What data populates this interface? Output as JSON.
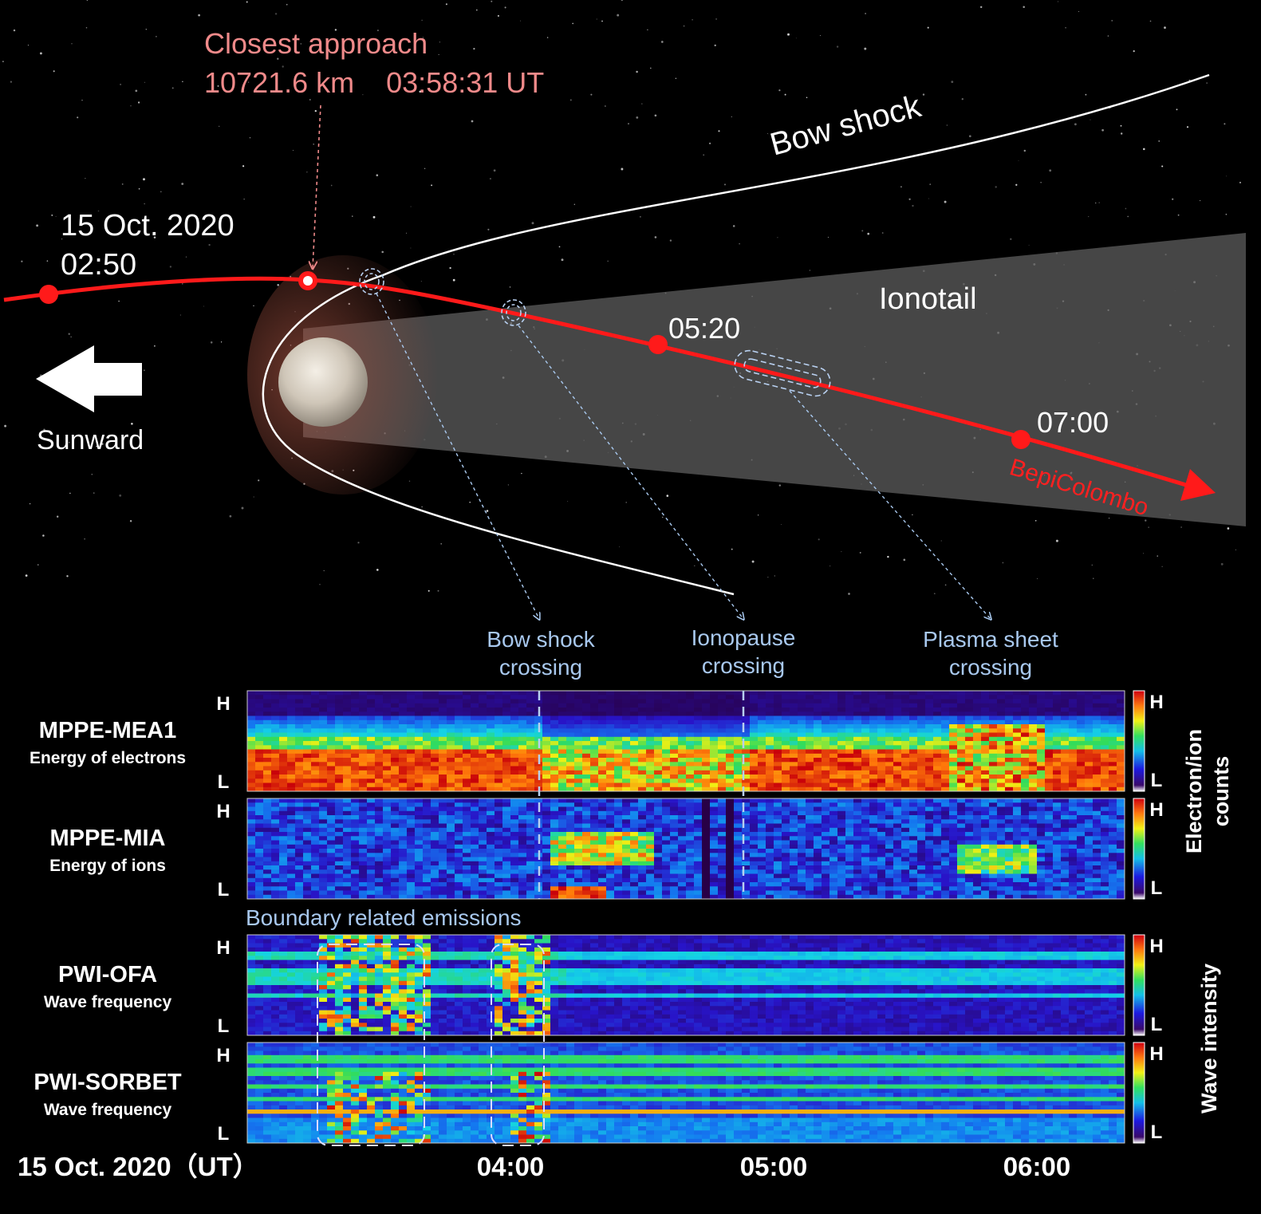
{
  "colors": {
    "trajectory": "#ff1a1a",
    "closest_label": "#f08a8a",
    "boundary_label": "#a8c8ee",
    "bepi_label": "#ff2020",
    "ionotail_fill": "#5a5a5a",
    "background": "#000000"
  },
  "top": {
    "closest_approach_title": "Closest approach",
    "closest_approach_detail": "10721.6 km    03:58:31 UT",
    "bow_shock": "Bow shock",
    "ionotail": "Ionotail",
    "date_line1": "15 Oct. 2020",
    "date_line2": "02:50",
    "t_0520": "05:20",
    "t_0700": "07:00",
    "spacecraft": "BepiColombo",
    "sunward": "Sunward",
    "sunward_icon": "left-arrow-icon",
    "planet_icon": "venus-planet-icon"
  },
  "crossings": {
    "bow_shock_l1": "Bow shock",
    "bow_shock_l2": "crossing",
    "ionopause_l1": "Ionopause",
    "ionopause_l2": "crossing",
    "plasma_l1": "Plasma sheet",
    "plasma_l2": "crossing"
  },
  "panels": [
    {
      "name": "MPPE-MEA1",
      "sub": "Energy of electrons",
      "hi": "H",
      "lo": "L",
      "cb_hi": "H",
      "cb_lo": "L"
    },
    {
      "name": "MPPE-MIA",
      "sub": "Energy of ions",
      "hi": "H",
      "lo": "L",
      "cb_hi": "H",
      "cb_lo": "L"
    },
    {
      "name": "PWI-OFA",
      "sub": "Wave frequency",
      "hi": "H",
      "lo": "L",
      "cb_hi": "H",
      "cb_lo": "L"
    },
    {
      "name": "PWI-SORBET",
      "sub": "Wave frequency",
      "hi": "H",
      "lo": "L",
      "cb_hi": "H",
      "cb_lo": "L"
    }
  ],
  "colorbar_titles": {
    "particles_l1": "Electron/ion",
    "particles_l2": "counts",
    "waves": "Wave intensity"
  },
  "boundary_emissions": "Boundary related emissions",
  "time_axis": {
    "date": "15 Oct. 2020（UT）",
    "ticks": [
      "04:00",
      "05:00",
      "06:00"
    ]
  }
}
